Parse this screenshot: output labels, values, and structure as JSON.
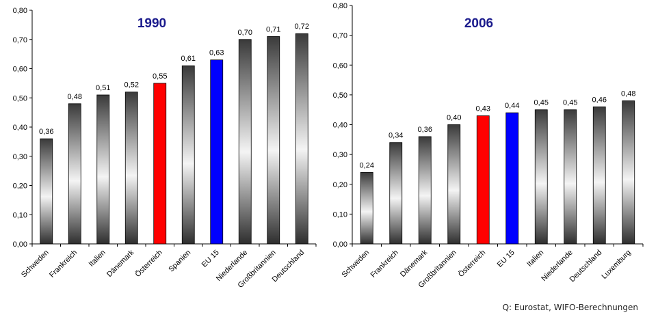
{
  "chart_data": [
    {
      "type": "bar",
      "title": "1990",
      "categories": [
        "Schweden",
        "Frankreich",
        "Italien",
        "Dänemark",
        "Österreich",
        "Spanien",
        "EU 15",
        "Niederlande",
        "Großbritannien",
        "Deutschland"
      ],
      "values": [
        0.36,
        0.48,
        0.51,
        0.52,
        0.55,
        0.61,
        0.63,
        0.7,
        0.71,
        0.72
      ],
      "value_labels": [
        "0,36",
        "0,48",
        "0,51",
        "0,52",
        "0,55",
        "0,61",
        "0,63",
        "0,70",
        "0,71",
        "0,72"
      ],
      "highlight": {
        "Österreich": "#ff0000",
        "EU 15": "#0000ff"
      },
      "ylim": [
        0,
        0.8
      ],
      "yticks": [
        "0,00",
        "0,10",
        "0,20",
        "0,30",
        "0,40",
        "0,50",
        "0,60",
        "0,70",
        "0,80"
      ],
      "grid": false
    },
    {
      "type": "bar",
      "title": "2006",
      "categories": [
        "Schweden",
        "Frankreich",
        "Dänemark",
        "Großbritannien",
        "Österreich",
        "EU 15",
        "Italien",
        "Niederlande",
        "Deutschland",
        "Luxemburg"
      ],
      "values": [
        0.24,
        0.34,
        0.36,
        0.4,
        0.43,
        0.44,
        0.45,
        0.45,
        0.46,
        0.48
      ],
      "value_labels": [
        "0,24",
        "0,34",
        "0,36",
        "0,40",
        "0,43",
        "0,44",
        "0,45",
        "0,45",
        "0,46",
        "0,48"
      ],
      "highlight": {
        "Österreich": "#ff0000",
        "EU 15": "#0000ff"
      },
      "ylim": [
        0,
        0.8
      ],
      "yticks": [
        "0,00",
        "0,10",
        "0,20",
        "0,30",
        "0,40",
        "0,50",
        "0,60",
        "0,70",
        "0,80"
      ],
      "grid": false
    }
  ],
  "source": "Q: Eurostat, WIFO-Berechnungen",
  "colors": {
    "title": "#1a1a8c",
    "axis": "#000000"
  }
}
